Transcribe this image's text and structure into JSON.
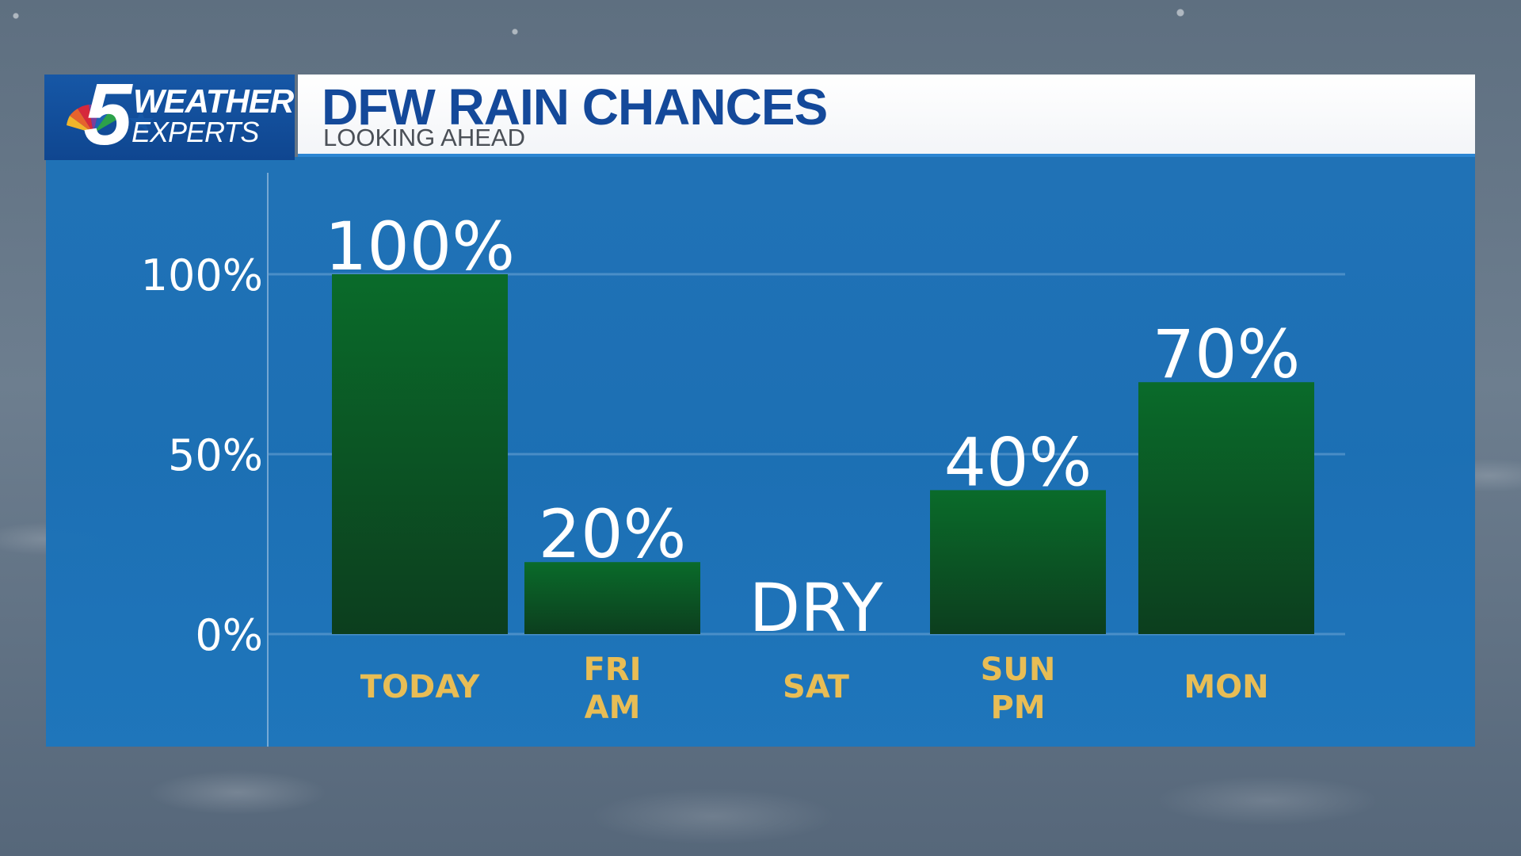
{
  "header": {
    "logo_line1": "WEATHER",
    "logo_line2": "EXPERTS",
    "logo_numeral": "5",
    "title": "DFW RAIN CHANCES",
    "subtitle": "LOOKING AHEAD"
  },
  "colors": {
    "panel_blue": "#1a6fb5",
    "title_blue": "#14499a",
    "bar_green_top": "#0a6b2a",
    "bar_green_bottom": "#0c3e1e",
    "category_gold": "#e8bd55"
  },
  "chart_data": {
    "type": "bar",
    "title": "DFW RAIN CHANCES",
    "subtitle": "LOOKING AHEAD",
    "categories": [
      [
        "TODAY"
      ],
      [
        "FRI",
        "AM"
      ],
      [
        "SAT"
      ],
      [
        "SUN",
        "PM"
      ],
      [
        "MON"
      ]
    ],
    "values": [
      100,
      20,
      0,
      40,
      70
    ],
    "value_labels": [
      "100%",
      "20%",
      "DRY",
      "40%",
      "70%"
    ],
    "y_ticks": [
      0,
      50,
      100
    ],
    "y_tick_labels": [
      "0%",
      "50%",
      "100%"
    ],
    "ylim": [
      0,
      100
    ],
    "grid": true,
    "legend": "none"
  }
}
